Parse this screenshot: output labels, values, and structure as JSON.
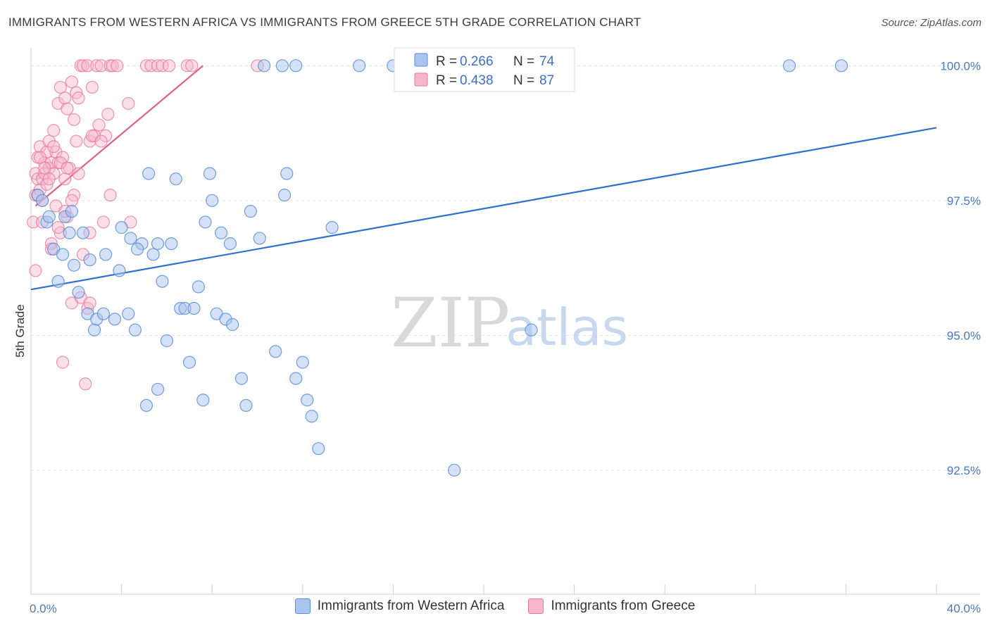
{
  "header": {
    "title": "IMMIGRANTS FROM WESTERN AFRICA VS IMMIGRANTS FROM GREECE 5TH GRADE CORRELATION CHART",
    "source": "Source: ZipAtlas.com"
  },
  "watermark": {
    "zip": "ZIP",
    "atlas": "atlas"
  },
  "colors": {
    "blue_fill": "#a9c4ef",
    "blue_stroke": "#5b8ed8",
    "blue_line": "#2f6fd0",
    "pink_fill": "#f6b7cc",
    "pink_stroke": "#e8799d",
    "pink_line": "#e0608a",
    "grid": "#e3e3e3"
  },
  "stats": {
    "series1": {
      "r_label": "R =",
      "r_value": "0.266",
      "n_label": "N =",
      "n_value": "74"
    },
    "series2": {
      "r_label": "R =",
      "r_value": "0.438",
      "n_label": "N =",
      "n_value": "87"
    }
  },
  "legend": {
    "series1": "Immigrants from Western Africa",
    "series2": "Immigrants from Greece"
  },
  "chart_data": {
    "type": "scatter",
    "title": "IMMIGRANTS FROM WESTERN AFRICA VS IMMIGRANTS FROM GREECE 5TH GRADE CORRELATION CHART",
    "xlabel": "",
    "ylabel": "5th Grade",
    "xlim": [
      0,
      40
    ],
    "ylim": [
      90.2,
      100.2
    ],
    "x_tick_labels": [
      "0.0%",
      "40.0%"
    ],
    "y_ticks": [
      92.5,
      95.0,
      97.5,
      100.0
    ],
    "y_tick_labels": [
      "92.5%",
      "95.0%",
      "97.5%",
      "100.0%"
    ],
    "series": [
      {
        "name": "Immigrants from Western Africa",
        "color": "blue",
        "trend": {
          "x": [
            0,
            40
          ],
          "y": [
            95.85,
            98.85
          ]
        },
        "points": [
          [
            0.3,
            97.6
          ],
          [
            0.5,
            97.5
          ],
          [
            0.7,
            97.1
          ],
          [
            1.0,
            96.6
          ],
          [
            1.2,
            96.0
          ],
          [
            1.5,
            97.2
          ],
          [
            1.8,
            97.3
          ],
          [
            1.7,
            96.9
          ],
          [
            1.9,
            96.3
          ],
          [
            2.1,
            95.8
          ],
          [
            2.3,
            96.9
          ],
          [
            2.6,
            96.4
          ],
          [
            2.5,
            95.4
          ],
          [
            2.8,
            95.1
          ],
          [
            2.9,
            95.3
          ],
          [
            3.2,
            95.4
          ],
          [
            3.3,
            96.5
          ],
          [
            3.7,
            95.3
          ],
          [
            3.9,
            96.2
          ],
          [
            4.0,
            97.0
          ],
          [
            4.3,
            95.4
          ],
          [
            4.4,
            96.8
          ],
          [
            4.6,
            95.1
          ],
          [
            4.9,
            96.7
          ],
          [
            5.2,
            98.0
          ],
          [
            5.4,
            96.5
          ],
          [
            5.6,
            96.7
          ],
          [
            5.8,
            96.0
          ],
          [
            6.0,
            94.9
          ],
          [
            6.2,
            96.7
          ],
          [
            6.4,
            97.9
          ],
          [
            6.6,
            95.5
          ],
          [
            6.8,
            95.5
          ],
          [
            7.0,
            94.5
          ],
          [
            7.2,
            95.5
          ],
          [
            7.4,
            95.9
          ],
          [
            7.6,
            93.8
          ],
          [
            7.7,
            97.1
          ],
          [
            7.9,
            98.0
          ],
          [
            8.0,
            97.5
          ],
          [
            8.2,
            95.4
          ],
          [
            8.4,
            96.9
          ],
          [
            8.6,
            95.3
          ],
          [
            8.8,
            96.7
          ],
          [
            8.9,
            95.2
          ],
          [
            9.3,
            94.2
          ],
          [
            9.5,
            93.7
          ],
          [
            9.7,
            97.3
          ],
          [
            10.1,
            96.8
          ],
          [
            10.3,
            100.0
          ],
          [
            10.8,
            94.7
          ],
          [
            11.1,
            100.0
          ],
          [
            11.2,
            97.6
          ],
          [
            11.3,
            98.0
          ],
          [
            11.7,
            100.0
          ],
          [
            11.7,
            94.2
          ],
          [
            12.0,
            94.5
          ],
          [
            12.2,
            93.8
          ],
          [
            12.4,
            93.5
          ],
          [
            12.7,
            92.9
          ],
          [
            13.3,
            97.0
          ],
          [
            14.5,
            100.0
          ],
          [
            16.0,
            100.0
          ],
          [
            16.5,
            100.0
          ],
          [
            16.9,
            100.0
          ],
          [
            18.7,
            92.5
          ],
          [
            22.1,
            95.1
          ],
          [
            33.5,
            100.0
          ],
          [
            35.8,
            100.0
          ],
          [
            5.1,
            93.7
          ],
          [
            5.6,
            94.0
          ],
          [
            0.8,
            97.2
          ],
          [
            1.4,
            96.5
          ],
          [
            4.7,
            96.6
          ]
        ]
      },
      {
        "name": "Immigrants from Greece",
        "color": "pink",
        "trend": {
          "x": [
            0.2,
            7.6
          ],
          "y": [
            97.4,
            100.0
          ]
        },
        "points": [
          [
            0.1,
            97.1
          ],
          [
            0.2,
            97.6
          ],
          [
            0.2,
            98.0
          ],
          [
            0.3,
            98.3
          ],
          [
            0.3,
            97.9
          ],
          [
            0.4,
            98.5
          ],
          [
            0.4,
            97.7
          ],
          [
            0.5,
            97.9
          ],
          [
            0.6,
            98.2
          ],
          [
            0.6,
            98.0
          ],
          [
            0.7,
            98.4
          ],
          [
            0.7,
            97.8
          ],
          [
            0.8,
            98.1
          ],
          [
            0.8,
            98.6
          ],
          [
            0.9,
            98.2
          ],
          [
            1.0,
            98.8
          ],
          [
            1.0,
            98.0
          ],
          [
            1.1,
            98.4
          ],
          [
            1.2,
            98.2
          ],
          [
            1.2,
            99.3
          ],
          [
            1.3,
            99.6
          ],
          [
            1.4,
            98.3
          ],
          [
            1.5,
            97.9
          ],
          [
            1.5,
            99.4
          ],
          [
            1.6,
            99.2
          ],
          [
            1.7,
            98.1
          ],
          [
            1.8,
            99.7
          ],
          [
            1.9,
            99.0
          ],
          [
            2.0,
            98.6
          ],
          [
            2.0,
            99.5
          ],
          [
            2.1,
            99.4
          ],
          [
            2.2,
            100.0
          ],
          [
            2.3,
            100.0
          ],
          [
            2.5,
            100.0
          ],
          [
            2.6,
            98.6
          ],
          [
            2.7,
            99.6
          ],
          [
            2.8,
            98.7
          ],
          [
            2.9,
            100.0
          ],
          [
            3.0,
            98.9
          ],
          [
            3.1,
            100.0
          ],
          [
            3.3,
            98.7
          ],
          [
            3.4,
            99.1
          ],
          [
            3.5,
            100.0
          ],
          [
            3.6,
            100.0
          ],
          [
            3.8,
            100.0
          ],
          [
            4.3,
            99.3
          ],
          [
            5.1,
            100.0
          ],
          [
            5.3,
            100.0
          ],
          [
            5.6,
            100.0
          ],
          [
            5.8,
            100.0
          ],
          [
            6.1,
            100.0
          ],
          [
            6.9,
            100.0
          ],
          [
            7.1,
            100.0
          ],
          [
            10.0,
            100.0
          ],
          [
            0.2,
            96.2
          ],
          [
            0.5,
            97.5
          ],
          [
            0.9,
            96.7
          ],
          [
            1.3,
            96.9
          ],
          [
            1.6,
            97.2
          ],
          [
            1.9,
            97.6
          ],
          [
            2.3,
            96.5
          ],
          [
            2.6,
            96.9
          ],
          [
            3.2,
            97.1
          ],
          [
            3.5,
            97.6
          ],
          [
            1.4,
            94.5
          ],
          [
            2.4,
            94.1
          ],
          [
            1.8,
            95.6
          ],
          [
            2.5,
            95.5
          ],
          [
            4.4,
            97.1
          ],
          [
            0.9,
            96.6
          ],
          [
            1.1,
            97.4
          ],
          [
            1.5,
            97.3
          ],
          [
            2.2,
            95.7
          ],
          [
            2.6,
            95.6
          ],
          [
            0.4,
            98.3
          ],
          [
            0.6,
            98.1
          ],
          [
            0.8,
            97.9
          ],
          [
            1.0,
            98.5
          ],
          [
            1.3,
            98.2
          ],
          [
            1.6,
            98.1
          ],
          [
            1.8,
            97.5
          ],
          [
            2.7,
            98.7
          ],
          [
            3.1,
            98.6
          ],
          [
            2.1,
            98.0
          ],
          [
            0.3,
            97.6
          ],
          [
            0.5,
            97.1
          ],
          [
            1.2,
            97.0
          ]
        ]
      }
    ]
  }
}
